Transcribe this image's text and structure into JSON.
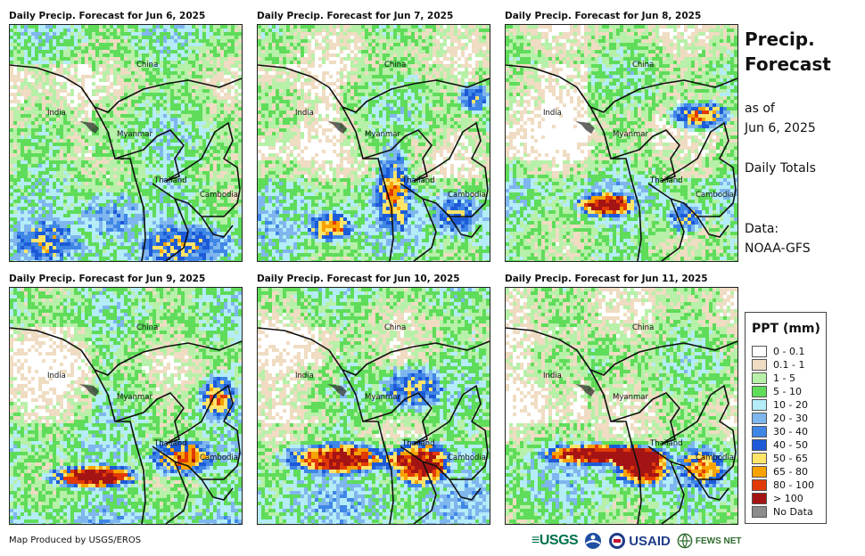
{
  "panels": [
    {
      "title": "Daily Precip. Forecast for Jun 6, 2025",
      "labels": [
        "China",
        "India",
        "Myanmar",
        "Thailand",
        "Cambodia"
      ]
    },
    {
      "title": "Daily Precip. Forecast for Jun 7, 2025",
      "labels": [
        "China",
        "India",
        "Myanmar",
        "Thailand",
        "Cambodia"
      ]
    },
    {
      "title": "Daily Precip. Forecast for Jun 8, 2025",
      "labels": [
        "China",
        "India",
        "Myanmar",
        "Thailand",
        "Cambodia"
      ]
    },
    {
      "title": "Daily Precip. Forecast for Jun 9, 2025",
      "labels": [
        "China",
        "India",
        "Myanmar",
        "Thailand",
        "Cambodia"
      ]
    },
    {
      "title": "Daily Precip. Forecast for Jun 10, 2025",
      "labels": [
        "China",
        "India",
        "Myanmar",
        "Thailand",
        "Cambodia"
      ]
    },
    {
      "title": "Daily Precip. Forecast for Jun 11, 2025",
      "labels": [
        "China",
        "India",
        "Myanmar",
        "Thailand",
        "Cambodia"
      ]
    }
  ],
  "side": {
    "title_line1": "Precip.",
    "title_line2": "Forecast",
    "asof_line1": "as of",
    "asof_line2": "Jun 6, 2025",
    "period": "Daily Totals",
    "source_line1": "Data:",
    "source_line2": "NOAA-GFS"
  },
  "legend": {
    "title": "PPT (mm)",
    "items": [
      {
        "label": "0 - 0.1",
        "color": "#ffffff"
      },
      {
        "label": "0.1 - 1",
        "color": "#efdcc2"
      },
      {
        "label": "1 - 5",
        "color": "#b7f0a8"
      },
      {
        "label": "5 - 10",
        "color": "#5fdc5a"
      },
      {
        "label": "10 - 20",
        "color": "#b4ecf8"
      },
      {
        "label": "20 - 30",
        "color": "#7fb6ee"
      },
      {
        "label": "30 - 40",
        "color": "#3f86e6"
      },
      {
        "label": "40 - 50",
        "color": "#1c5ad8"
      },
      {
        "label": "50 - 65",
        "color": "#ffe46a"
      },
      {
        "label": "65 - 80",
        "color": "#f7a200"
      },
      {
        "label": "80 - 100",
        "color": "#e23a06"
      },
      {
        "label": "> 100",
        "color": "#a51414"
      },
      {
        "label": "No Data",
        "color": "#8c8c8c"
      }
    ]
  },
  "footer": {
    "credit": "Map Produced by USGS/EROS",
    "logo_usgs": "≡USGS",
    "logo_usaid": "USAID",
    "logo_fews": "FEWS NET"
  }
}
